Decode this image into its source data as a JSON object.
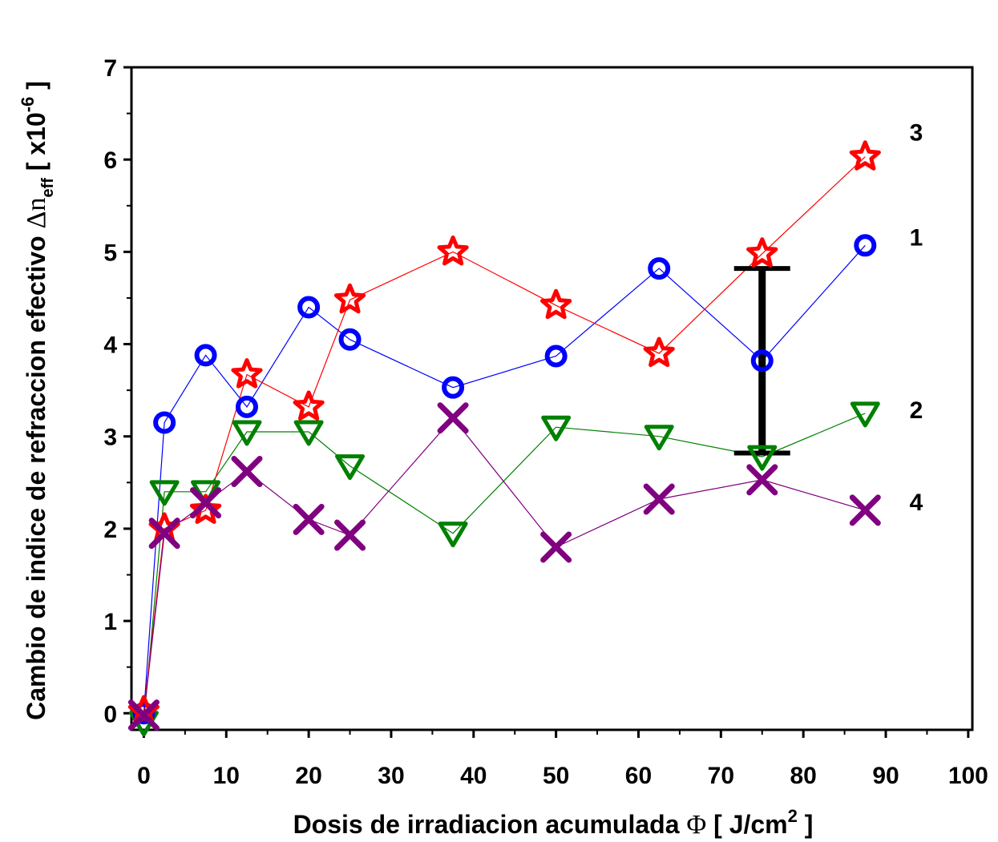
{
  "chart_data": {
    "type": "line",
    "title": "",
    "xlabel": {
      "prefix": "Dosis de irradiacion acumulada ",
      "symbol": "Φ",
      "unit_open": " [ J/cm",
      "unit_sup": "2",
      "unit_close": " ]"
    },
    "ylabel": {
      "prefix": "Cambio de indice de refraccion efectivo ",
      "symbol": "Δn",
      "sub": "eff",
      "unit_open": " [ x10",
      "unit_sup": "-6",
      "unit_close": " ]"
    },
    "xlim": [
      -1.5,
      100.5
    ],
    "ylim": [
      -0.18,
      7
    ],
    "x_ticks": [
      0,
      10,
      20,
      30,
      40,
      50,
      60,
      70,
      80,
      90,
      100
    ],
    "x_tick_labels": [
      "0",
      "10",
      "20",
      "30",
      "40",
      "50",
      "60",
      "70",
      "80",
      "90",
      "100"
    ],
    "y_ticks": [
      0,
      1,
      2,
      3,
      4,
      5,
      6,
      7
    ],
    "y_tick_labels": [
      "0",
      "1",
      "2",
      "3",
      "4",
      "5",
      "6",
      "7"
    ],
    "grid": false,
    "series": [
      {
        "name": "1",
        "label": "1",
        "color": "#0000ff",
        "marker": "circle",
        "points": [
          [
            0,
            0
          ],
          [
            2.5,
            3.15
          ],
          [
            7.5,
            3.88
          ],
          [
            12.5,
            3.32
          ],
          [
            20,
            4.4
          ],
          [
            25,
            4.05
          ],
          [
            37.5,
            3.53
          ],
          [
            50,
            3.87
          ],
          [
            62.5,
            4.82
          ],
          [
            75,
            3.82
          ],
          [
            87.5,
            5.07
          ]
        ]
      },
      {
        "name": "2",
        "label": "2",
        "color": "#008000",
        "marker": "triangle-down",
        "points": [
          [
            0,
            -0.1
          ],
          [
            2.5,
            2.4
          ],
          [
            7.5,
            2.4
          ],
          [
            12.5,
            3.05
          ],
          [
            20,
            3.05
          ],
          [
            25,
            2.68
          ],
          [
            37.5,
            1.95
          ],
          [
            50,
            3.1
          ],
          [
            62.5,
            3.0
          ],
          [
            75,
            2.78
          ],
          [
            87.5,
            3.25
          ]
        ]
      },
      {
        "name": "3",
        "label": "3",
        "color": "#ff0000",
        "marker": "star",
        "points": [
          [
            0,
            0.02
          ],
          [
            2.5,
            2.0
          ],
          [
            7.5,
            2.2
          ],
          [
            12.5,
            3.67
          ],
          [
            20,
            3.32
          ],
          [
            25,
            4.48
          ],
          [
            37.5,
            5.0
          ],
          [
            50,
            4.42
          ],
          [
            62.5,
            3.9
          ],
          [
            75,
            4.98
          ],
          [
            87.5,
            6.03
          ]
        ]
      },
      {
        "name": "4",
        "label": "4",
        "color": "#800080",
        "marker": "x",
        "points": [
          [
            0,
            -0.02
          ],
          [
            2.5,
            1.95
          ],
          [
            7.5,
            2.28
          ],
          [
            12.5,
            2.62
          ],
          [
            20,
            2.1
          ],
          [
            25,
            1.93
          ],
          [
            37.5,
            3.2
          ],
          [
            50,
            1.8
          ],
          [
            62.5,
            2.32
          ],
          [
            75,
            2.53
          ],
          [
            87.5,
            2.2
          ]
        ]
      }
    ],
    "error_bar": {
      "x": 75,
      "y_low": 2.82,
      "y_high": 4.82,
      "color": "#000000"
    }
  }
}
